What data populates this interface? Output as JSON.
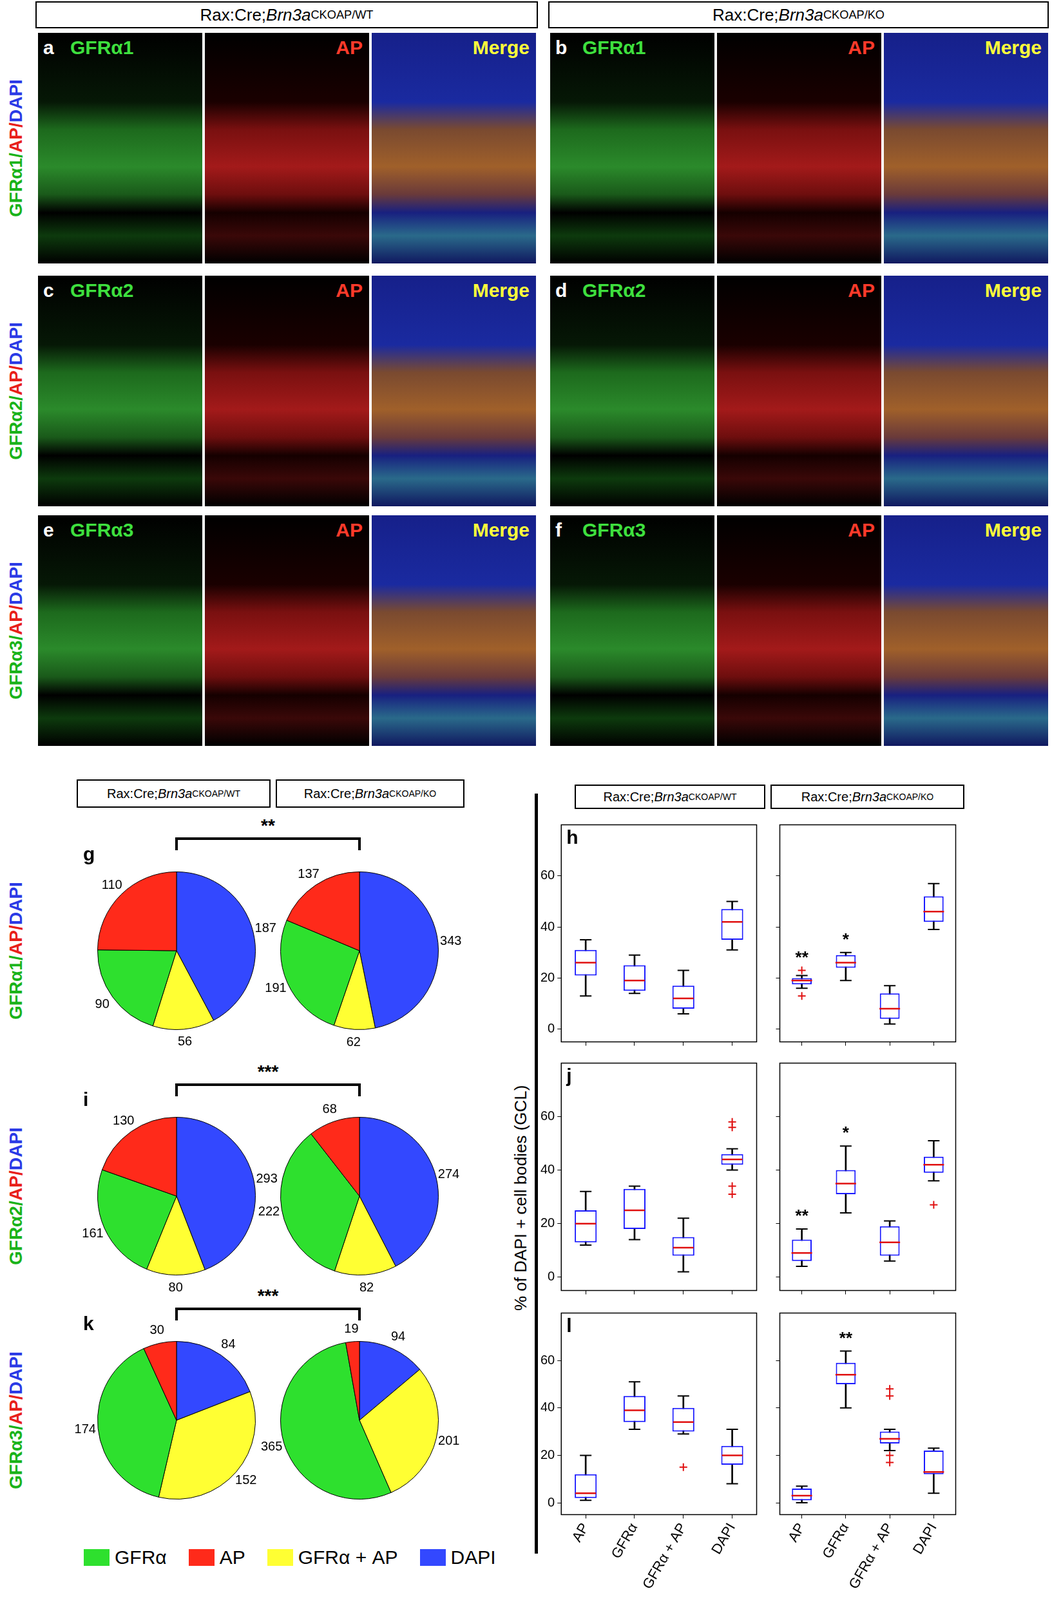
{
  "genotypes": [
    {
      "prefix": "Rax:Cre; ",
      "gene": "Brn3a",
      "sup": "CKOAP/WT"
    },
    {
      "prefix": "Rax:Cre; ",
      "gene": "Brn3a",
      "sup": "CKOAP/KO"
    }
  ],
  "row_labels": [
    [
      {
        "text": "GFRα1/",
        "color": "#19b319"
      },
      {
        "text": "AP/",
        "color": "#e8201a"
      },
      {
        "text": "DAPI",
        "color": "#2a3ae6"
      }
    ],
    [
      {
        "text": "GFRα2/",
        "color": "#19b319"
      },
      {
        "text": "AP/",
        "color": "#e8201a"
      },
      {
        "text": "DAPI",
        "color": "#2a3ae6"
      }
    ],
    [
      {
        "text": "GFRα3/",
        "color": "#19b319"
      },
      {
        "text": "AP/",
        "color": "#e8201a"
      },
      {
        "text": "DAPI",
        "color": "#2a3ae6"
      }
    ]
  ],
  "image_panels": {
    "channel_colors": [
      "#3ee03e",
      "#ff3a2a",
      "#ffff3a"
    ],
    "rows": [
      [
        {
          "letter": "a",
          "channels": [
            "GFRα1",
            "AP",
            "Merge"
          ]
        },
        {
          "letter": "b",
          "channels": [
            "GFRα1",
            "AP",
            "Merge"
          ]
        }
      ],
      [
        {
          "letter": "c",
          "channels": [
            "GFRα2",
            "AP",
            "Merge"
          ]
        },
        {
          "letter": "d",
          "channels": [
            "GFRα2",
            "AP",
            "Merge"
          ]
        }
      ],
      [
        {
          "letter": "e",
          "channels": [
            "GFRα3",
            "AP",
            "Merge"
          ]
        },
        {
          "letter": "f",
          "channels": [
            "GFRα3",
            "AP",
            "Merge"
          ]
        }
      ]
    ]
  },
  "pie_comparisons": [
    "**",
    "***",
    "***"
  ],
  "legend_entries": [
    {
      "name": "GFRα",
      "color": "#2ee02e"
    },
    {
      "name": "AP",
      "color": "#ff2a1a"
    },
    {
      "name": "GFRα + AP",
      "color": "#ffff33"
    },
    {
      "name": "DAPI",
      "color": "#3348ff"
    }
  ],
  "y_axis_label": "% of DAPI + cell bodies (GCL)",
  "chart_data": [
    {
      "type": "pie",
      "title": "g",
      "categories": [
        "DAPI",
        "GFRα + AP",
        "GFRα",
        "AP"
      ],
      "values": [
        187,
        56,
        90,
        110
      ],
      "colors": [
        "#3348ff",
        "#ffff33",
        "#2ee02e",
        "#ff2a1a"
      ],
      "data_labels": true
    },
    {
      "type": "pie",
      "categories": [
        "DAPI",
        "GFRα + AP",
        "GFRα",
        "AP"
      ],
      "values": [
        343,
        62,
        191,
        137
      ],
      "colors": [
        "#3348ff",
        "#ffff33",
        "#2ee02e",
        "#ff2a1a"
      ],
      "data_labels": true
    },
    {
      "type": "pie",
      "title": "i",
      "categories": [
        "DAPI",
        "GFRα + AP",
        "GFRα",
        "AP"
      ],
      "values": [
        293,
        80,
        161,
        130
      ],
      "colors": [
        "#3348ff",
        "#ffff33",
        "#2ee02e",
        "#ff2a1a"
      ],
      "data_labels": true
    },
    {
      "type": "pie",
      "categories": [
        "DAPI",
        "GFRα + AP",
        "GFRα",
        "AP"
      ],
      "values": [
        274,
        82,
        222,
        68
      ],
      "colors": [
        "#3348ff",
        "#ffff33",
        "#2ee02e",
        "#ff2a1a"
      ],
      "data_labels": true
    },
    {
      "type": "pie",
      "title": "k",
      "categories": [
        "DAPI",
        "GFRα + AP",
        "GFRα",
        "AP"
      ],
      "values": [
        84,
        152,
        174,
        30
      ],
      "colors": [
        "#3348ff",
        "#ffff33",
        "#2ee02e",
        "#ff2a1a"
      ],
      "data_labels": true
    },
    {
      "type": "pie",
      "categories": [
        "DAPI",
        "GFRα + AP",
        "GFRα",
        "AP"
      ],
      "values": [
        94,
        201,
        365,
        19
      ],
      "colors": [
        "#3348ff",
        "#ffff33",
        "#2ee02e",
        "#ff2a1a"
      ],
      "data_labels": true
    },
    {
      "type": "boxplot",
      "title": "h",
      "categories": [
        "AP",
        "GFRα",
        "GFRα + AP",
        "DAPI"
      ],
      "ylim": [
        -5,
        80
      ],
      "yticks": [
        0,
        20,
        40,
        60
      ],
      "grid": false,
      "tick_labels": "y",
      "boxes": [
        {
          "min": 13,
          "q1": 21,
          "median": 26,
          "q3": 31,
          "max": 35
        },
        {
          "min": 14,
          "q1": 15,
          "median": 19,
          "q3": 25,
          "max": 29
        },
        {
          "min": 6,
          "q1": 8,
          "median": 12,
          "q3": 17,
          "max": 23
        },
        {
          "min": 31,
          "q1": 35,
          "median": 42,
          "q3": 47,
          "max": 50
        }
      ]
    },
    {
      "type": "boxplot",
      "categories": [
        "AP",
        "GFRα",
        "GFRα + AP",
        "DAPI"
      ],
      "ylim": [
        -5,
        80
      ],
      "yticks": [
        0,
        20,
        40,
        60
      ],
      "grid": false,
      "tick_labels": false,
      "boxes": [
        {
          "min": 16,
          "q1": 17.5,
          "median": 19,
          "q3": 20,
          "max": 21,
          "outliers": [
            23,
            13
          ]
        },
        {
          "min": 19,
          "q1": 24,
          "median": 26,
          "q3": 29,
          "max": 30
        },
        {
          "min": 2,
          "q1": 4,
          "median": 8,
          "q3": 14,
          "max": 17
        },
        {
          "min": 39,
          "q1": 42,
          "median": 46,
          "q3": 52,
          "max": 57
        }
      ],
      "annotations": [
        {
          "category": "AP",
          "text": "**"
        },
        {
          "category": "GFRα",
          "text": "*"
        }
      ]
    },
    {
      "type": "boxplot",
      "title": "j",
      "categories": [
        "AP",
        "GFRα",
        "GFRα + AP",
        "DAPI"
      ],
      "ylim": [
        -5,
        80
      ],
      "yticks": [
        0,
        20,
        40,
        60
      ],
      "grid": false,
      "tick_labels": "y",
      "boxes": [
        {
          "min": 12,
          "q1": 13,
          "median": 20,
          "q3": 25,
          "max": 32
        },
        {
          "min": 14,
          "q1": 18,
          "median": 25,
          "q3": 33,
          "max": 34
        },
        {
          "min": 2,
          "q1": 8,
          "median": 11,
          "q3": 15,
          "max": 22
        },
        {
          "min": 40,
          "q1": 42,
          "median": 44,
          "q3": 46,
          "max": 48,
          "outliers": [
            58,
            56,
            34,
            31
          ]
        }
      ]
    },
    {
      "type": "boxplot",
      "categories": [
        "AP",
        "GFRα",
        "GFRα + AP",
        "DAPI"
      ],
      "ylim": [
        -5,
        80
      ],
      "yticks": [
        0,
        20,
        40,
        60
      ],
      "grid": false,
      "tick_labels": false,
      "boxes": [
        {
          "min": 4,
          "q1": 6,
          "median": 9,
          "q3": 14,
          "max": 18
        },
        {
          "min": 24,
          "q1": 31,
          "median": 35,
          "q3": 40,
          "max": 49
        },
        {
          "min": 6,
          "q1": 8,
          "median": 13,
          "q3": 19,
          "max": 21
        },
        {
          "min": 36,
          "q1": 39,
          "median": 42,
          "q3": 45,
          "max": 51,
          "outliers": [
            27
          ]
        }
      ],
      "annotations": [
        {
          "category": "AP",
          "text": "**"
        },
        {
          "category": "GFRα",
          "text": "*"
        }
      ]
    },
    {
      "type": "boxplot",
      "title": "l",
      "categories": [
        "AP",
        "GFRα",
        "GFRα + AP",
        "DAPI"
      ],
      "ylim": [
        -5,
        80
      ],
      "yticks": [
        0,
        20,
        40,
        60
      ],
      "grid": false,
      "tick_labels": true,
      "boxes": [
        {
          "min": 1,
          "q1": 2,
          "median": 4,
          "q3": 12,
          "max": 20
        },
        {
          "min": 31,
          "q1": 34,
          "median": 39,
          "q3": 45,
          "max": 51
        },
        {
          "min": 29,
          "q1": 30,
          "median": 34,
          "q3": 40,
          "max": 45,
          "outliers": [
            15
          ]
        },
        {
          "min": 8,
          "q1": 16,
          "median": 20,
          "q3": 24,
          "max": 31
        }
      ]
    },
    {
      "type": "boxplot",
      "categories": [
        "AP",
        "GFRα",
        "GFRα + AP",
        "DAPI"
      ],
      "ylim": [
        -5,
        80
      ],
      "yticks": [
        0,
        20,
        40,
        60
      ],
      "grid": false,
      "tick_labels": "x",
      "boxes": [
        {
          "min": 0,
          "q1": 1,
          "median": 3,
          "q3": 6,
          "max": 7
        },
        {
          "min": 40,
          "q1": 50,
          "median": 54,
          "q3": 59,
          "max": 64
        },
        {
          "min": 22,
          "q1": 25,
          "median": 27,
          "q3": 30,
          "max": 31,
          "outliers": [
            48,
            45,
            20,
            17
          ]
        },
        {
          "min": 4,
          "q1": 12,
          "median": 13,
          "q3": 22,
          "max": 23
        }
      ],
      "annotations": [
        {
          "category": "GFRα",
          "text": "**"
        }
      ]
    }
  ]
}
